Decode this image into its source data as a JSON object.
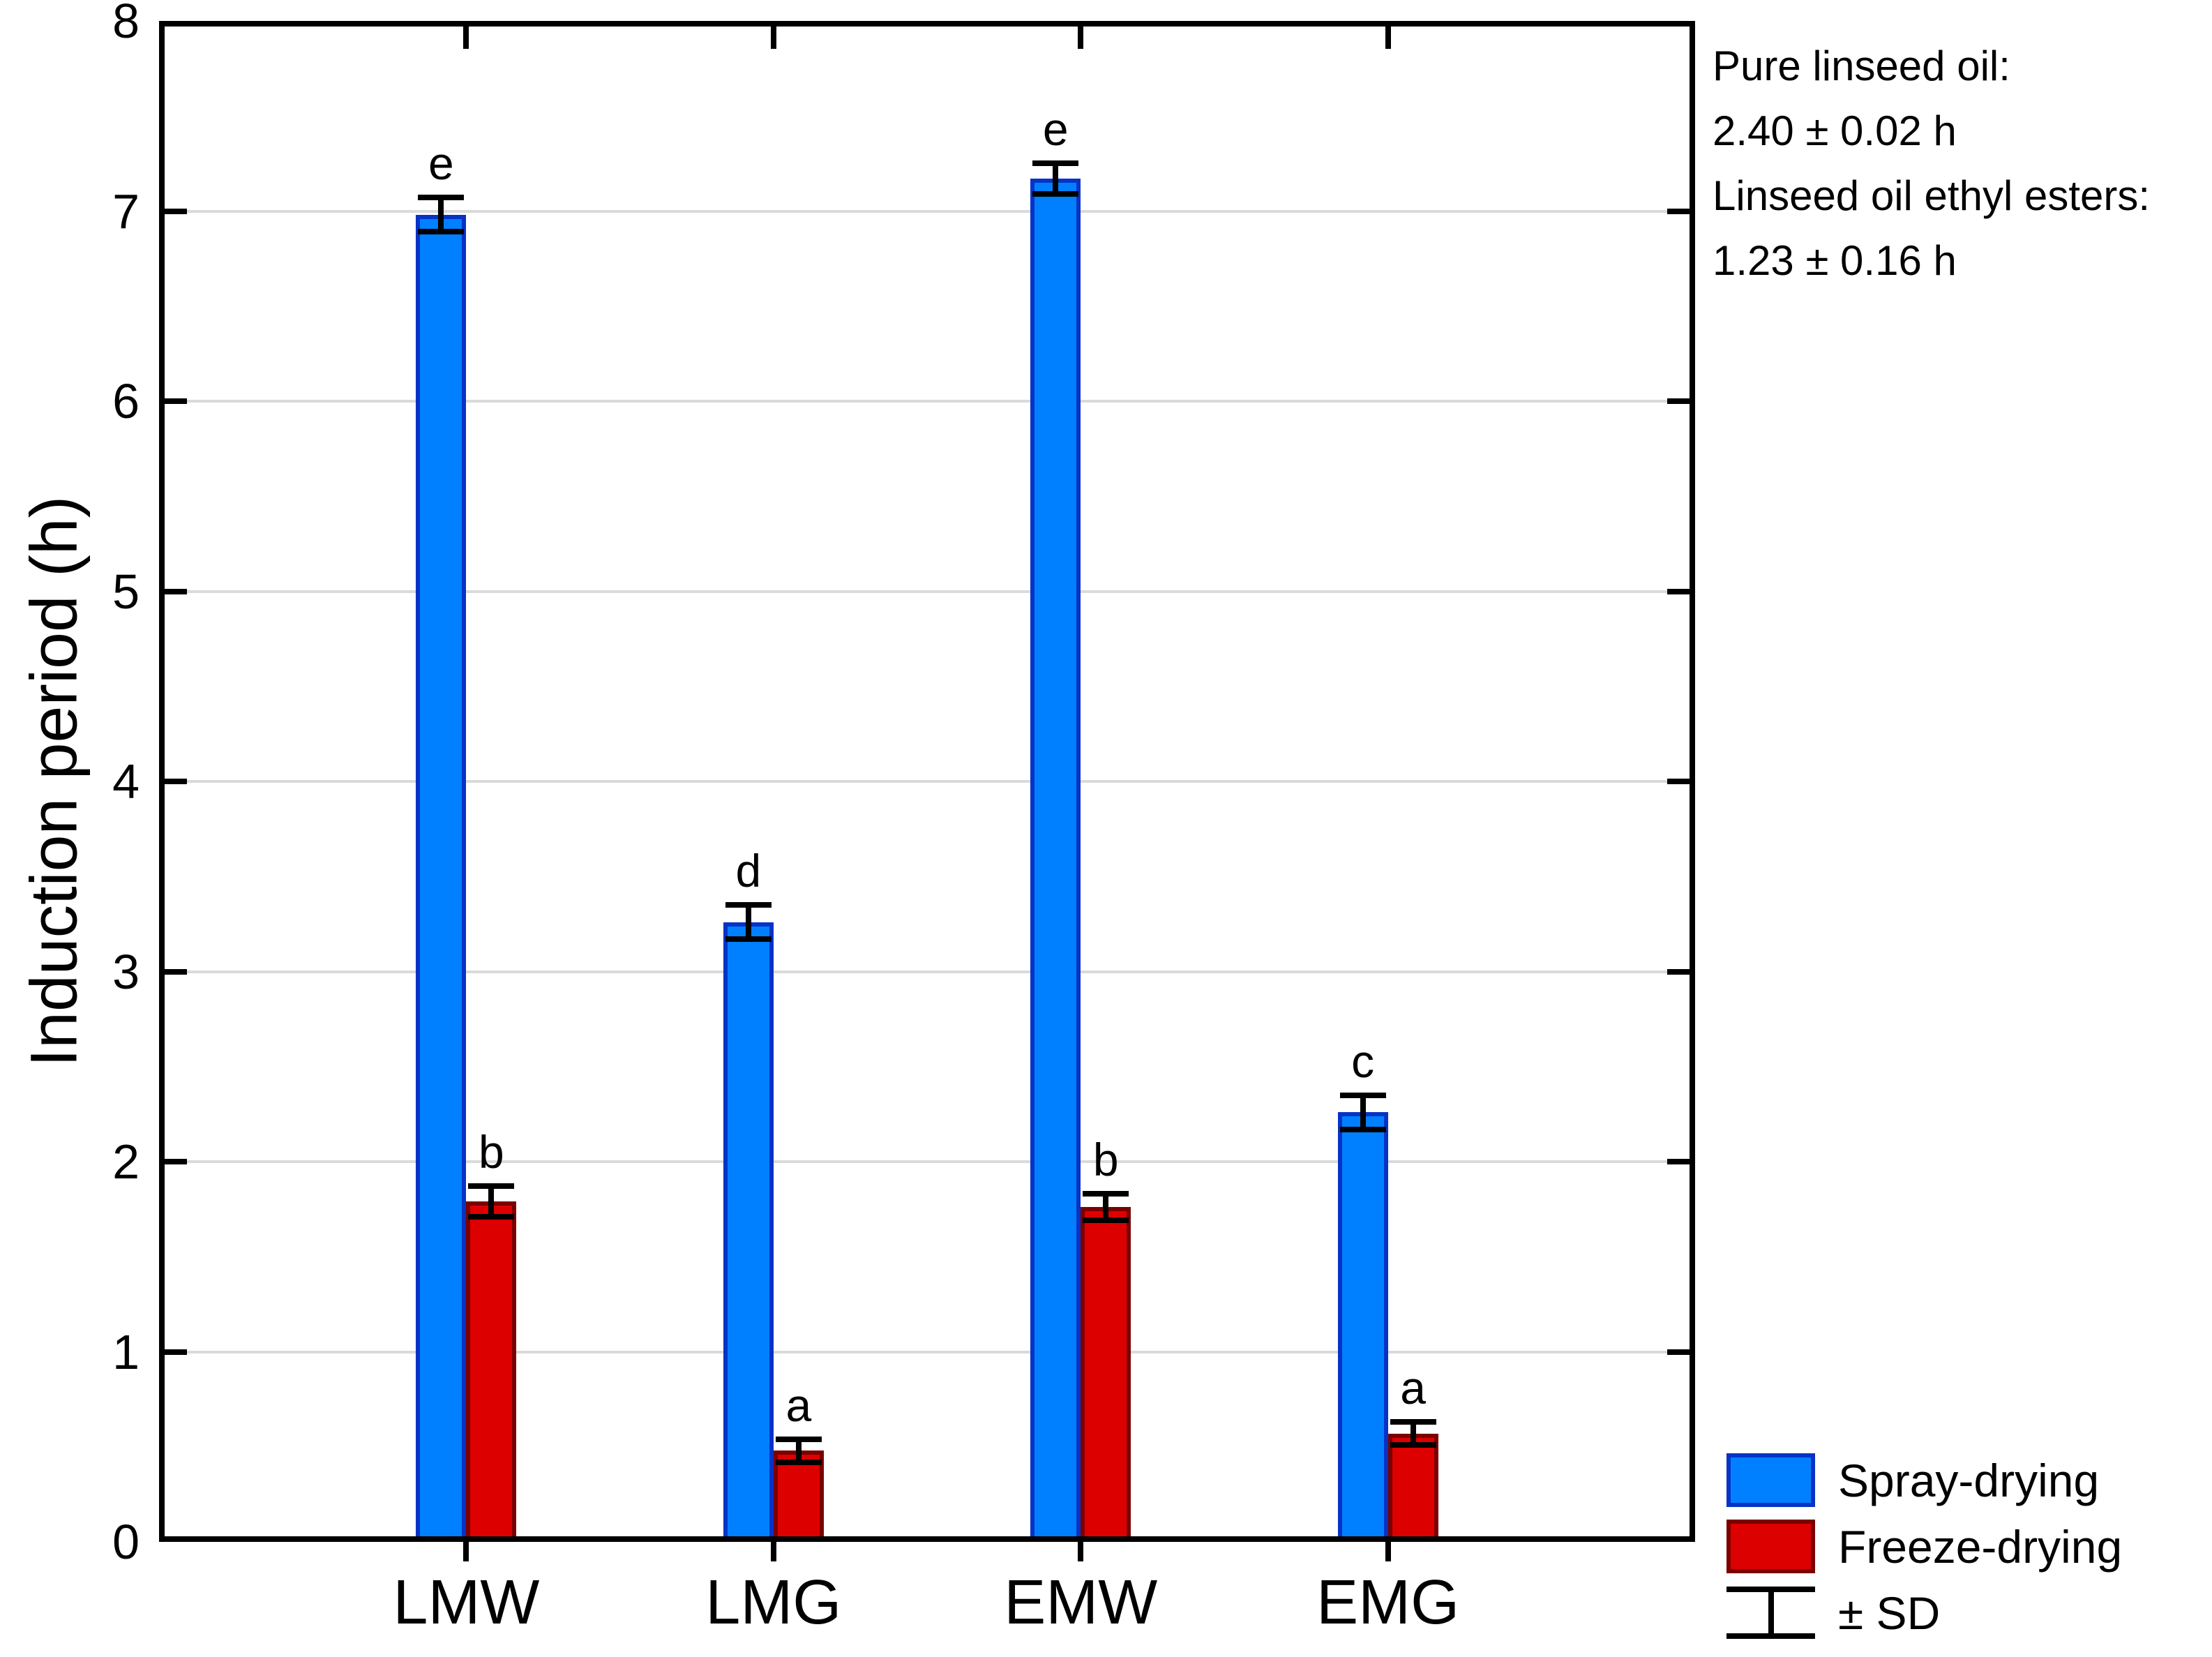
{
  "colors": {
    "spray_fill": "#0080FF",
    "spray_border": "#0633C6",
    "freeze_fill": "#DD0000",
    "freeze_border": "#7B0000",
    "gridline": "#DADADA",
    "frame": "#000000"
  },
  "annotation": {
    "lines": [
      "Pure linseed oil:",
      "2.40 ± 0.02 h",
      "Linseed oil ethyl esters:",
      "1.23 ± 0.16 h"
    ]
  },
  "legend": {
    "sd_label": "± SD"
  },
  "chart_data": {
    "type": "bar",
    "title": "",
    "xlabel": "",
    "ylabel": "Induction period (h)",
    "ylim": [
      0,
      8
    ],
    "ytick_step": 1,
    "grid": true,
    "legend_position": "bottom-right",
    "categories": [
      "LMW",
      "LMG",
      "EMW",
      "EMG"
    ],
    "series": [
      {
        "name": "Spray-drying",
        "values": [
          6.98,
          3.26,
          7.17,
          2.26
        ],
        "sd": [
          0.09,
          0.09,
          0.08,
          0.09
        ],
        "letters": [
          "e",
          "d",
          "e",
          "c"
        ]
      },
      {
        "name": "Freeze-drying",
        "values": [
          1.79,
          0.48,
          1.76,
          0.57
        ],
        "sd": [
          0.08,
          0.06,
          0.07,
          0.06
        ],
        "letters": [
          "b",
          "a",
          "b",
          "a"
        ]
      }
    ],
    "annotation_text": "Pure linseed oil: 2.40 ± 0.02 h; Linseed oil ethyl esters: 1.23 ± 0.16 h"
  }
}
